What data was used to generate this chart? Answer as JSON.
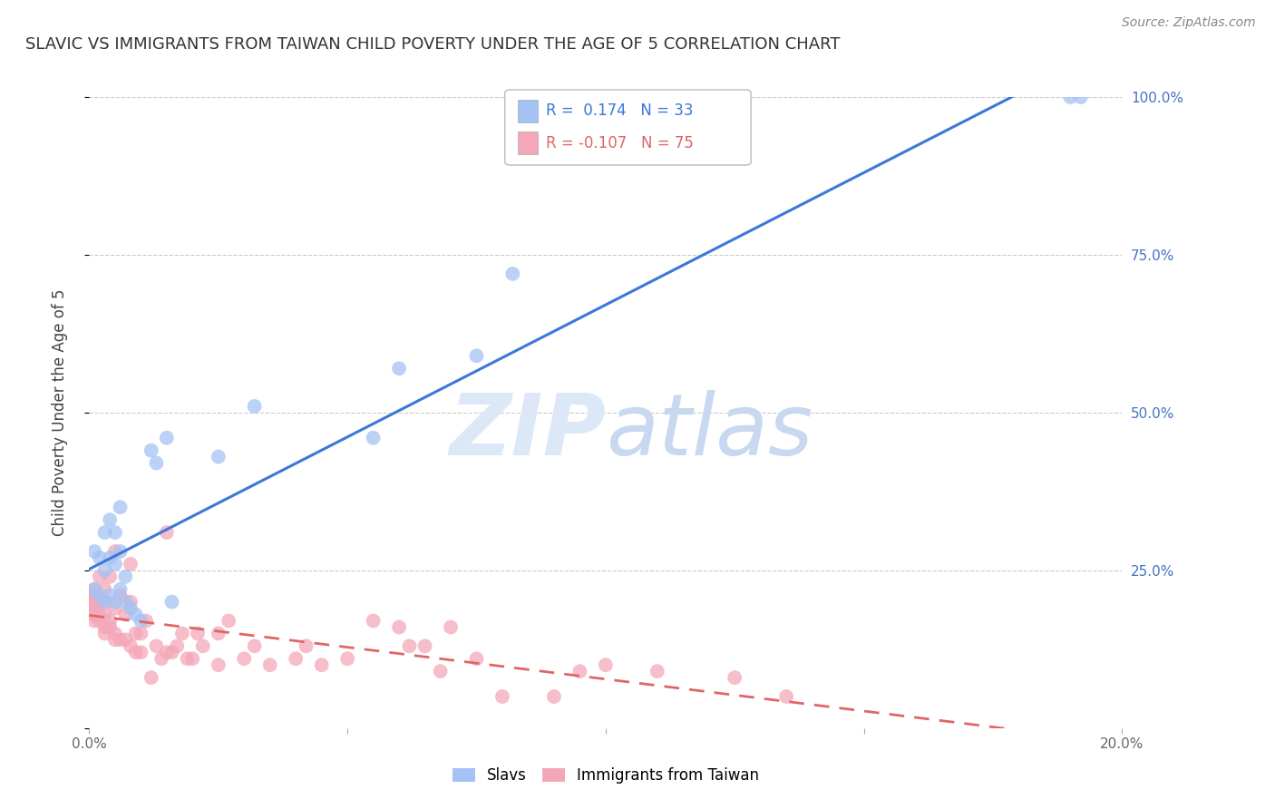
{
  "title": "SLAVIC VS IMMIGRANTS FROM TAIWAN CHILD POVERTY UNDER THE AGE OF 5 CORRELATION CHART",
  "source": "Source: ZipAtlas.com",
  "ylabel": "Child Poverty Under the Age of 5",
  "x_min": 0.0,
  "x_max": 0.2,
  "y_min": 0.0,
  "y_max": 1.0,
  "x_ticks": [
    0.0,
    0.05,
    0.1,
    0.15,
    0.2
  ],
  "x_tick_labels": [
    "0.0%",
    "",
    "",
    "",
    "20.0%"
  ],
  "y_ticks": [
    0.0,
    0.25,
    0.5,
    0.75,
    1.0
  ],
  "y_tick_labels_right": [
    "",
    "25.0%",
    "50.0%",
    "75.0%",
    "100.0%"
  ],
  "slavs_R": 0.174,
  "slavs_N": 33,
  "taiwan_R": -0.107,
  "taiwan_N": 75,
  "slavs_color": "#a4c2f4",
  "taiwan_color": "#f4a7b9",
  "slavs_line_color": "#3c78d8",
  "taiwan_line_color": "#e06666",
  "background_color": "#ffffff",
  "watermark_color": "#dce8f8",
  "legend_label_slavs": "Slavs",
  "legend_label_taiwan": "Immigrants from Taiwan",
  "slavs_x": [
    0.001,
    0.001,
    0.002,
    0.002,
    0.003,
    0.003,
    0.003,
    0.004,
    0.004,
    0.004,
    0.005,
    0.005,
    0.005,
    0.006,
    0.006,
    0.006,
    0.007,
    0.007,
    0.008,
    0.009,
    0.01,
    0.012,
    0.013,
    0.015,
    0.016,
    0.025,
    0.032,
    0.055,
    0.06,
    0.075,
    0.082,
    0.19,
    0.192
  ],
  "slavs_y": [
    0.22,
    0.28,
    0.21,
    0.27,
    0.2,
    0.25,
    0.31,
    0.21,
    0.27,
    0.33,
    0.2,
    0.26,
    0.31,
    0.22,
    0.28,
    0.35,
    0.2,
    0.24,
    0.19,
    0.18,
    0.17,
    0.44,
    0.42,
    0.46,
    0.2,
    0.43,
    0.51,
    0.46,
    0.57,
    0.59,
    0.72,
    1.0,
    1.0
  ],
  "taiwan_x": [
    0.0,
    0.0,
    0.0,
    0.0,
    0.001,
    0.001,
    0.001,
    0.001,
    0.001,
    0.001,
    0.001,
    0.002,
    0.002,
    0.002,
    0.002,
    0.003,
    0.003,
    0.003,
    0.003,
    0.003,
    0.004,
    0.004,
    0.004,
    0.005,
    0.005,
    0.005,
    0.005,
    0.006,
    0.006,
    0.007,
    0.007,
    0.008,
    0.008,
    0.008,
    0.009,
    0.009,
    0.01,
    0.01,
    0.011,
    0.012,
    0.013,
    0.014,
    0.015,
    0.015,
    0.016,
    0.017,
    0.018,
    0.019,
    0.02,
    0.021,
    0.022,
    0.025,
    0.025,
    0.027,
    0.03,
    0.032,
    0.035,
    0.04,
    0.042,
    0.045,
    0.05,
    0.055,
    0.06,
    0.062,
    0.065,
    0.068,
    0.07,
    0.075,
    0.08,
    0.09,
    0.095,
    0.1,
    0.11,
    0.125,
    0.135
  ],
  "taiwan_y": [
    0.2,
    0.2,
    0.2,
    0.21,
    0.17,
    0.18,
    0.18,
    0.19,
    0.2,
    0.21,
    0.22,
    0.17,
    0.18,
    0.2,
    0.24,
    0.15,
    0.16,
    0.18,
    0.2,
    0.22,
    0.16,
    0.17,
    0.24,
    0.14,
    0.15,
    0.19,
    0.28,
    0.14,
    0.21,
    0.14,
    0.18,
    0.13,
    0.2,
    0.26,
    0.12,
    0.15,
    0.12,
    0.15,
    0.17,
    0.08,
    0.13,
    0.11,
    0.12,
    0.31,
    0.12,
    0.13,
    0.15,
    0.11,
    0.11,
    0.15,
    0.13,
    0.1,
    0.15,
    0.17,
    0.11,
    0.13,
    0.1,
    0.11,
    0.13,
    0.1,
    0.11,
    0.17,
    0.16,
    0.13,
    0.13,
    0.09,
    0.16,
    0.11,
    0.05,
    0.05,
    0.09,
    0.1,
    0.09,
    0.08,
    0.05
  ]
}
